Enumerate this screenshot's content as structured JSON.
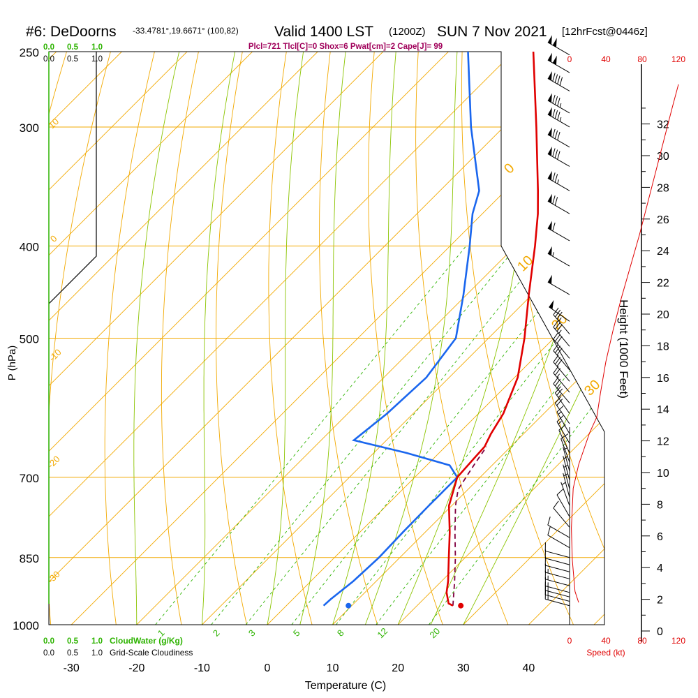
{
  "header": {
    "station": "#6: DeDoorns",
    "coords": "-33.4781°,19.6671° (100,82)",
    "valid": "Valid 1400 LST",
    "zulu": "(1200Z)",
    "date": "SUN 7 Nov 2021",
    "forecast": "[12hrFcst@0446z]",
    "indices": "Plcl=721 Tlcl[C]=0 Shox=6 Pwat[cm]=2 Cape[J]= 99"
  },
  "colors": {
    "isotherm": "#f2a900",
    "mixing": "#2db300",
    "adiabat": "#8bc400",
    "temp": "#e00000",
    "dewpoint": "#1a66ee",
    "parcel": "#800040",
    "speed": "#e00000"
  },
  "chart_data": {
    "type": "skew-t",
    "xlabel": "Temperature (C)",
    "ylabel": "P (hPa)",
    "y2label": "Height (1000 Feet)",
    "x_ticks": [
      "-30",
      "-20",
      "-10",
      "0",
      "10",
      "20",
      "30",
      "40"
    ],
    "p_ticks": [
      "250",
      "300",
      "400",
      "500",
      "700",
      "850",
      "1000"
    ],
    "height_ticks": [
      "0",
      "2",
      "4",
      "6",
      "8",
      "10",
      "12",
      "14",
      "16",
      "18",
      "20",
      "22",
      "24",
      "26",
      "28",
      "30",
      "32"
    ],
    "speed_ticks": [
      "0",
      "40",
      "80",
      "120"
    ],
    "speed_label": "Speed (kt)",
    "cloud_ticks": [
      "0.0",
      "0.5",
      "1.0"
    ],
    "cloudwater_label": "CloudWater (g/Kg)",
    "cloudiness_label": "Grid-Scale Cloudiness",
    "mixing_ratio_labels": [
      "1",
      "2",
      "3",
      "5",
      "8",
      "12",
      "20"
    ],
    "isotherm_labels": [
      "10",
      "0",
      "-10",
      "-20",
      "-30"
    ],
    "adiabat_labels": [
      "0",
      "10",
      "20",
      "30"
    ],
    "temperature": [
      {
        "p": 955,
        "t": 25.5
      },
      {
        "p": 950,
        "t": 24.5
      },
      {
        "p": 925,
        "t": 22.5
      },
      {
        "p": 900,
        "t": 21.0
      },
      {
        "p": 850,
        "t": 17.5
      },
      {
        "p": 800,
        "t": 13.8
      },
      {
        "p": 750,
        "t": 9.6
      },
      {
        "p": 700,
        "t": 6.5
      },
      {
        "p": 670,
        "t": 6.2
      },
      {
        "p": 650,
        "t": 6.0
      },
      {
        "p": 630,
        "t": 5.0
      },
      {
        "p": 600,
        "t": 3.8
      },
      {
        "p": 550,
        "t": 0.5
      },
      {
        "p": 500,
        "t": -4.5
      },
      {
        "p": 450,
        "t": -10.5
      },
      {
        "p": 400,
        "t": -17.0
      },
      {
        "p": 370,
        "t": -21.5
      },
      {
        "p": 350,
        "t": -25.0
      },
      {
        "p": 300,
        "t": -35.0
      },
      {
        "p": 250,
        "t": -47.0
      }
    ],
    "dewpoint": [
      {
        "p": 955,
        "t": 5.7
      },
      {
        "p": 940,
        "t": 5.8
      },
      {
        "p": 900,
        "t": 6.5
      },
      {
        "p": 850,
        "t": 6.8
      },
      {
        "p": 800,
        "t": 6.6
      },
      {
        "p": 750,
        "t": 6.5
      },
      {
        "p": 700,
        "t": 6.5
      },
      {
        "p": 680,
        "t": 3.5
      },
      {
        "p": 660,
        "t": -5.0
      },
      {
        "p": 640,
        "t": -15.0
      },
      {
        "p": 600,
        "t": -14.0
      },
      {
        "p": 550,
        "t": -13.5
      },
      {
        "p": 500,
        "t": -15.0
      },
      {
        "p": 450,
        "t": -20.5
      },
      {
        "p": 400,
        "t": -27.0
      },
      {
        "p": 370,
        "t": -31.5
      },
      {
        "p": 350,
        "t": -34.0
      },
      {
        "p": 300,
        "t": -45.0
      },
      {
        "p": 250,
        "t": -57.0
      }
    ],
    "parcel": [
      {
        "p": 955,
        "t": 25.5
      },
      {
        "p": 900,
        "t": 22.0
      },
      {
        "p": 850,
        "t": 18.5
      },
      {
        "p": 800,
        "t": 14.6
      },
      {
        "p": 750,
        "t": 10.6
      },
      {
        "p": 721,
        "t": 8.5
      },
      {
        "p": 680,
        "t": 7.2
      },
      {
        "p": 650,
        "t": 6.3
      }
    ],
    "surface_temp": {
      "p": 955,
      "t": 26.7
    },
    "surface_dew": {
      "p": 955,
      "t": 9.5
    },
    "cloudiness": [
      {
        "p": 250,
        "v": 1.0
      },
      {
        "p": 410,
        "v": 1.0
      },
      {
        "p": 460,
        "v": 0.0
      },
      {
        "p": 1000,
        "v": 0.0
      }
    ],
    "wind_speed": [
      {
        "h": 1.8,
        "s": 10
      },
      {
        "h": 2.5,
        "s": 6
      },
      {
        "h": 4.5,
        "s": 3
      },
      {
        "h": 6.5,
        "s": 2
      },
      {
        "h": 9.0,
        "s": 4
      },
      {
        "h": 10.5,
        "s": 10
      },
      {
        "h": 11.5,
        "s": 16
      },
      {
        "h": 12.5,
        "s": 22
      },
      {
        "h": 13.5,
        "s": 30
      },
      {
        "h": 15.0,
        "s": 34
      },
      {
        "h": 17.0,
        "s": 40
      },
      {
        "h": 19.0,
        "s": 48
      },
      {
        "h": 21.0,
        "s": 57
      },
      {
        "h": 23.0,
        "s": 67
      },
      {
        "h": 25.0,
        "s": 77
      },
      {
        "h": 27.0,
        "s": 86
      },
      {
        "h": 29.0,
        "s": 95
      },
      {
        "h": 31.0,
        "s": 104
      },
      {
        "h": 33.0,
        "s": 113
      },
      {
        "h": 34.5,
        "s": 120
      }
    ],
    "wind_barbs": [
      {
        "p": 955,
        "dir": 285,
        "spd": 15
      },
      {
        "p": 945,
        "dir": 285,
        "spd": 15
      },
      {
        "p": 935,
        "dir": 285,
        "spd": 15
      },
      {
        "p": 925,
        "dir": 285,
        "spd": 15
      },
      {
        "p": 910,
        "dir": 285,
        "spd": 15
      },
      {
        "p": 895,
        "dir": 285,
        "spd": 15
      },
      {
        "p": 880,
        "dir": 285,
        "spd": 10
      },
      {
        "p": 865,
        "dir": 285,
        "spd": 10
      },
      {
        "p": 850,
        "dir": 285,
        "spd": 10
      },
      {
        "p": 830,
        "dir": 300,
        "spd": 10
      },
      {
        "p": 810,
        "dir": 300,
        "spd": 10
      },
      {
        "p": 790,
        "dir": 320,
        "spd": 10
      },
      {
        "p": 770,
        "dir": 330,
        "spd": 10
      },
      {
        "p": 750,
        "dir": 340,
        "spd": 5
      },
      {
        "p": 735,
        "dir": 345,
        "spd": 5
      },
      {
        "p": 720,
        "dir": 345,
        "spd": 5
      },
      {
        "p": 705,
        "dir": 345,
        "spd": 5
      },
      {
        "p": 690,
        "dir": 345,
        "spd": 5
      },
      {
        "p": 675,
        "dir": 340,
        "spd": 10
      },
      {
        "p": 660,
        "dir": 335,
        "spd": 10
      },
      {
        "p": 645,
        "dir": 330,
        "spd": 15
      },
      {
        "p": 630,
        "dir": 330,
        "spd": 15
      },
      {
        "p": 615,
        "dir": 325,
        "spd": 20
      },
      {
        "p": 600,
        "dir": 325,
        "spd": 25
      },
      {
        "p": 585,
        "dir": 320,
        "spd": 25
      },
      {
        "p": 570,
        "dir": 320,
        "spd": 25
      },
      {
        "p": 555,
        "dir": 320,
        "spd": 30
      },
      {
        "p": 540,
        "dir": 320,
        "spd": 30
      },
      {
        "p": 525,
        "dir": 320,
        "spd": 30
      },
      {
        "p": 510,
        "dir": 320,
        "spd": 35
      },
      {
        "p": 495,
        "dir": 320,
        "spd": 35
      },
      {
        "p": 480,
        "dir": 305,
        "spd": 50
      },
      {
        "p": 450,
        "dir": 300,
        "spd": 50
      },
      {
        "p": 420,
        "dir": 300,
        "spd": 55
      },
      {
        "p": 395,
        "dir": 300,
        "spd": 60
      },
      {
        "p": 370,
        "dir": 300,
        "spd": 70
      },
      {
        "p": 350,
        "dir": 300,
        "spd": 75
      },
      {
        "p": 330,
        "dir": 300,
        "spd": 80
      },
      {
        "p": 315,
        "dir": 300,
        "spd": 80
      },
      {
        "p": 300,
        "dir": 300,
        "spd": 85
      },
      {
        "p": 290,
        "dir": 300,
        "spd": 85
      },
      {
        "p": 275,
        "dir": 300,
        "spd": 90
      },
      {
        "p": 263,
        "dir": 300,
        "spd": 100
      },
      {
        "p": 252,
        "dir": 300,
        "spd": 100
      }
    ]
  }
}
